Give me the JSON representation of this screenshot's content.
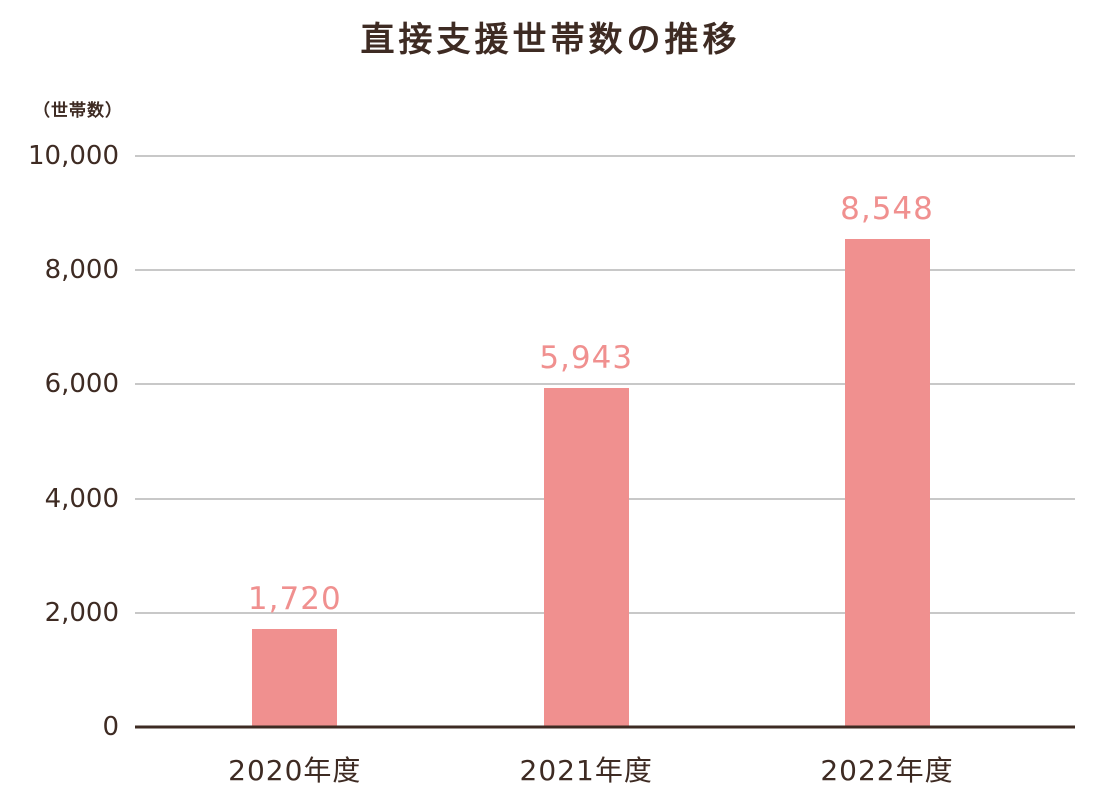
{
  "title": "直接支援世帯数の推移",
  "axis_unit_label": "（世帯数）",
  "colors": {
    "bar": "#F0908F",
    "value_label": "#F0908F",
    "text": "#3E2B23",
    "gridline": "#C8C8C8",
    "baseline": "#3E2B23"
  },
  "chart_data": {
    "type": "bar",
    "title": "直接支援世帯数の推移",
    "xlabel": "",
    "ylabel": "（世帯数）",
    "categories": [
      "2020年度",
      "2021年度",
      "2022年度"
    ],
    "values": [
      1720,
      5943,
      8548
    ],
    "value_labels": [
      "1,720",
      "5,943",
      "8,548"
    ],
    "ylim": [
      0,
      10000
    ],
    "yticks": [
      0,
      2000,
      4000,
      6000,
      8000,
      10000
    ],
    "ytick_labels": [
      "0",
      "2,000",
      "4,000",
      "6,000",
      "8,000",
      "10,000"
    ],
    "grid": true,
    "legend": false
  }
}
